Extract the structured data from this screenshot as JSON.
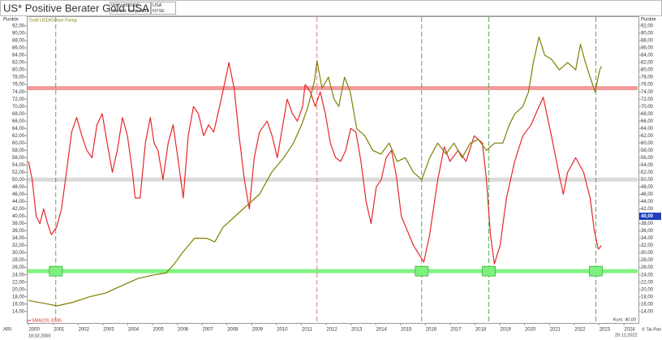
{
  "chart_data": {
    "type": "line",
    "title": "US* Positive Berater Gold USA",
    "info": {
      "wkn": "WKN: 889900",
      "group": "Markt & Konjunktur",
      "country": "USA",
      "exchange": "NYSE"
    },
    "y_label": "Punkte",
    "index_label": "ARI",
    "start_date": "18.02.2000",
    "end_date": "29.12.2022",
    "copyright": "© Tai-Pan",
    "kurs_label": "Kurs: 40,00",
    "current": {
      "value": 40,
      "label": "40,00"
    },
    "xlim": [
      1999.93,
      2024.59
    ],
    "xticks": [
      2000,
      2001,
      2002,
      2003,
      2004,
      2005,
      2006,
      2007,
      2008,
      2009,
      2010,
      2011,
      2012,
      2013,
      2014,
      2015,
      2016,
      2017,
      2018,
      2019,
      2020,
      2021,
      2022,
      2023,
      2024
    ],
    "ylim": [
      10.85,
      94.66
    ],
    "yticks": [
      {
        "value": 14,
        "label": "14,00"
      },
      {
        "value": 16,
        "label": "16,00"
      },
      {
        "value": 18,
        "label": "18,00"
      },
      {
        "value": 20,
        "label": "20,00"
      },
      {
        "value": 22,
        "label": "22,00"
      },
      {
        "value": 24,
        "label": "24,00"
      },
      {
        "value": 26,
        "label": "26,00"
      },
      {
        "value": 28,
        "label": "28,00"
      },
      {
        "value": 30,
        "label": "30,00"
      },
      {
        "value": 32,
        "label": "32,00"
      },
      {
        "value": 34,
        "label": "34,00"
      },
      {
        "value": 36,
        "label": "36,00"
      },
      {
        "value": 38,
        "label": "38,00"
      },
      {
        "value": 40,
        "label": "40,00"
      },
      {
        "value": 42,
        "label": "42,00"
      },
      {
        "value": 44,
        "label": "44,00"
      },
      {
        "value": 46,
        "label": "46,00"
      },
      {
        "value": 48,
        "label": "48,00"
      },
      {
        "value": 50,
        "label": "50,00"
      },
      {
        "value": 52,
        "label": "52,00"
      },
      {
        "value": 54,
        "label": "54,00"
      },
      {
        "value": 56,
        "label": "56,00"
      },
      {
        "value": 58,
        "label": "58,00"
      },
      {
        "value": 60,
        "label": "60,00"
      },
      {
        "value": 62,
        "label": "62,00"
      },
      {
        "value": 64,
        "label": "64,00"
      },
      {
        "value": 66,
        "label": "66,00"
      },
      {
        "value": 68,
        "label": "68,00"
      },
      {
        "value": 70,
        "label": "70,00"
      },
      {
        "value": 72,
        "label": "72,00"
      },
      {
        "value": 74,
        "label": "74,00"
      },
      {
        "value": 76,
        "label": "76,00"
      },
      {
        "value": 78,
        "label": "78,00"
      },
      {
        "value": 80,
        "label": "80,00"
      },
      {
        "value": 82,
        "label": "82,00"
      },
      {
        "value": 84,
        "label": "84,00"
      },
      {
        "value": 86,
        "label": "86,00"
      },
      {
        "value": 88,
        "label": "88,00"
      },
      {
        "value": 90,
        "label": "90,00"
      },
      {
        "value": 92,
        "label": "92,00"
      }
    ],
    "hlines": [
      {
        "value": 75,
        "color": "#f08a8a"
      },
      {
        "value": 50,
        "color": "#d4d4d4"
      },
      {
        "value": 25,
        "color": "#6cf06c"
      }
    ],
    "vlines": [
      {
        "x": 2001.1,
        "color": "#2a9d2a"
      },
      {
        "x": 2011.63,
        "color": "#e06060"
      },
      {
        "x": 2015.85,
        "color": "#2a9d2a"
      },
      {
        "x": 2018.56,
        "color": "#2a9d2a"
      },
      {
        "x": 2022.87,
        "color": "#2a9d2a"
      }
    ],
    "series": [
      {
        "name": "SMA(20) 32,85",
        "color": "#e8262a",
        "x": [
          2000.0,
          2000.15,
          2000.31,
          2000.46,
          2000.61,
          2000.77,
          2000.92,
          2001.13,
          2001.33,
          2001.53,
          2001.74,
          2001.94,
          2002.15,
          2002.35,
          2002.56,
          2002.76,
          2002.97,
          2003.17,
          2003.38,
          2003.58,
          2003.79,
          2003.99,
          2004.19,
          2004.3,
          2004.5,
          2004.71,
          2004.91,
          2005.06,
          2005.22,
          2005.42,
          2005.63,
          2005.83,
          2006.04,
          2006.24,
          2006.44,
          2006.65,
          2006.85,
          2007.06,
          2007.26,
          2007.47,
          2007.77,
          2008.08,
          2008.29,
          2008.49,
          2008.7,
          2008.9,
          2009.1,
          2009.31,
          2009.62,
          2009.82,
          2010.03,
          2010.23,
          2010.43,
          2010.64,
          2010.84,
          2011.05,
          2011.15,
          2011.36,
          2011.56,
          2011.76,
          2011.97,
          2012.17,
          2012.38,
          2012.58,
          2012.79,
          2012.99,
          2013.2,
          2013.4,
          2013.61,
          2013.81,
          2014.02,
          2014.22,
          2014.42,
          2014.63,
          2014.83,
          2015.03,
          2015.52,
          2015.94,
          2016.17,
          2016.5,
          2016.76,
          2016.99,
          2017.32,
          2017.64,
          2017.97,
          2018.3,
          2018.46,
          2018.62,
          2018.78,
          2019.01,
          2019.27,
          2019.6,
          2019.93,
          2020.26,
          2020.58,
          2020.75,
          2021.08,
          2021.4,
          2021.56,
          2021.73,
          2022.06,
          2022.38,
          2022.64,
          2022.81,
          2022.97,
          2023.1
        ],
        "values": [
          55,
          50,
          40,
          38,
          42,
          38,
          35,
          37,
          42,
          52,
          63,
          67,
          62,
          58,
          56,
          65,
          68,
          60,
          52,
          58,
          67,
          62,
          52,
          45,
          45,
          60,
          67,
          60,
          58,
          50,
          60,
          65,
          55,
          45,
          62,
          70,
          68,
          62,
          65,
          63,
          72,
          82,
          75,
          62,
          50,
          42,
          56,
          63,
          66,
          62,
          56,
          64,
          72,
          68,
          66,
          70,
          76,
          74,
          70,
          74,
          68,
          60,
          56,
          55,
          58,
          64,
          63,
          55,
          44,
          38,
          48,
          50,
          56,
          58,
          51,
          40,
          32,
          27.5,
          35,
          50,
          59,
          55,
          58,
          55,
          62,
          60,
          50,
          35,
          27,
          32,
          45,
          55,
          62,
          65,
          70,
          72.5,
          62,
          51,
          46,
          52,
          56,
          52,
          45,
          36,
          31,
          32
        ]
      },
      {
        "name": "Gold USD/Ounce Fixing",
        "color": "#7f7f00",
        "x": [
          2000.0,
          2000.81,
          2001.14,
          2001.79,
          2002.45,
          2003.1,
          2003.75,
          2004.41,
          2005.06,
          2005.55,
          2005.88,
          2006.2,
          2006.69,
          2007.18,
          2007.51,
          2007.84,
          2008.33,
          2008.65,
          2008.98,
          2009.31,
          2009.8,
          2010.29,
          2010.68,
          2011.01,
          2011.27,
          2011.53,
          2011.63,
          2011.83,
          2012.09,
          2012.32,
          2012.51,
          2012.74,
          2012.97,
          2013.23,
          2013.56,
          2013.88,
          2014.21,
          2014.54,
          2014.86,
          2015.19,
          2015.52,
          2015.85,
          2016.17,
          2016.5,
          2016.83,
          2017.15,
          2017.48,
          2017.81,
          2018.13,
          2018.46,
          2018.79,
          2019.12,
          2019.38,
          2019.61,
          2019.93,
          2020.16,
          2020.35,
          2020.58,
          2020.81,
          2021.07,
          2021.4,
          2021.73,
          2022.06,
          2022.25,
          2022.45,
          2022.64,
          2022.84,
          2023.03,
          2023.1
        ],
        "values": [
          17,
          16,
          15.5,
          16.5,
          18,
          19,
          21,
          23,
          24,
          24.5,
          27,
          30,
          34,
          34,
          33,
          37,
          40,
          42,
          44,
          46,
          52,
          56,
          60,
          65,
          70,
          77,
          82.5,
          75,
          78,
          72,
          70,
          78,
          74,
          64,
          62,
          58,
          57,
          60,
          55,
          56,
          52,
          50,
          56,
          60,
          57,
          60,
          56,
          60,
          61,
          58,
          60,
          60,
          65,
          68,
          70,
          74,
          82,
          89,
          84,
          83,
          80,
          82,
          80,
          87,
          82,
          78,
          74,
          80,
          81
        ]
      }
    ]
  }
}
